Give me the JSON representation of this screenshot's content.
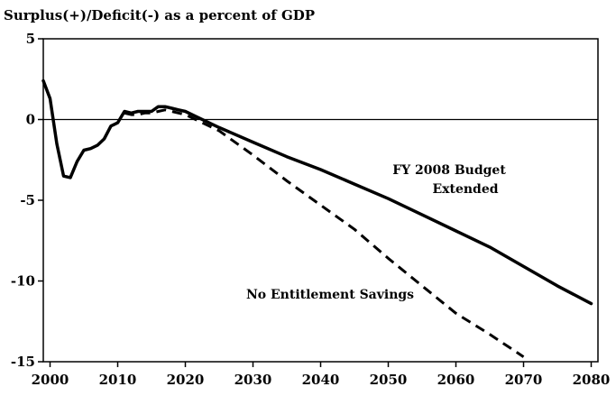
{
  "chart_data": {
    "type": "line",
    "title": "Surplus(+)/Deficit(-) as a percent of GDP",
    "xlabel": "",
    "ylabel": "",
    "xlim": [
      1999,
      2081
    ],
    "ylim": [
      -15,
      5
    ],
    "x_ticks": [
      2000,
      2010,
      2020,
      2030,
      2040,
      2050,
      2060,
      2070,
      2080
    ],
    "y_ticks": [
      5,
      0,
      -5,
      -10,
      -15
    ],
    "y_tick_labels": [
      "5",
      "0",
      "-5",
      "-10",
      "-15"
    ],
    "zero_line": true,
    "grid": false,
    "legend": "none",
    "series": [
      {
        "name": "FY 2008 Budget Extended",
        "style": "solid",
        "color": "#000000",
        "x": [
          1999,
          2000,
          2001,
          2002,
          2003,
          2004,
          2005,
          2006,
          2007,
          2008,
          2009,
          2010,
          2011,
          2012,
          2013,
          2014,
          2015,
          2016,
          2017,
          2018,
          2019,
          2020,
          2022,
          2025,
          2030,
          2035,
          2040,
          2045,
          2050,
          2055,
          2060,
          2065,
          2070,
          2075,
          2080
        ],
        "y": [
          2.4,
          1.3,
          -1.5,
          -3.5,
          -3.6,
          -2.6,
          -1.9,
          -1.8,
          -1.6,
          -1.2,
          -0.4,
          -0.2,
          0.5,
          0.4,
          0.5,
          0.5,
          0.5,
          0.8,
          0.8,
          0.7,
          0.6,
          0.5,
          0.1,
          -0.5,
          -1.4,
          -2.3,
          -3.1,
          -4.0,
          -4.9,
          -5.9,
          -6.9,
          -7.9,
          -9.1,
          -10.3,
          -11.4
        ]
      },
      {
        "name": "No Entitlement Savings",
        "style": "dashed",
        "color": "#000000",
        "x": [
          2011,
          2012,
          2013,
          2014,
          2015,
          2016,
          2017,
          2018,
          2020,
          2025,
          2030,
          2035,
          2040,
          2045,
          2050,
          2055,
          2060,
          2065,
          2070
        ],
        "y": [
          0.4,
          0.3,
          0.3,
          0.4,
          0.4,
          0.5,
          0.6,
          0.5,
          0.3,
          -0.7,
          -2.2,
          -3.8,
          -5.3,
          -6.8,
          -8.6,
          -10.3,
          -12.0,
          -13.3,
          -14.7
        ]
      }
    ],
    "annotations": [
      {
        "line1": "FY 2008 Budget",
        "line2": "Extended"
      },
      {
        "text": "No Entitlement Savings"
      }
    ]
  }
}
